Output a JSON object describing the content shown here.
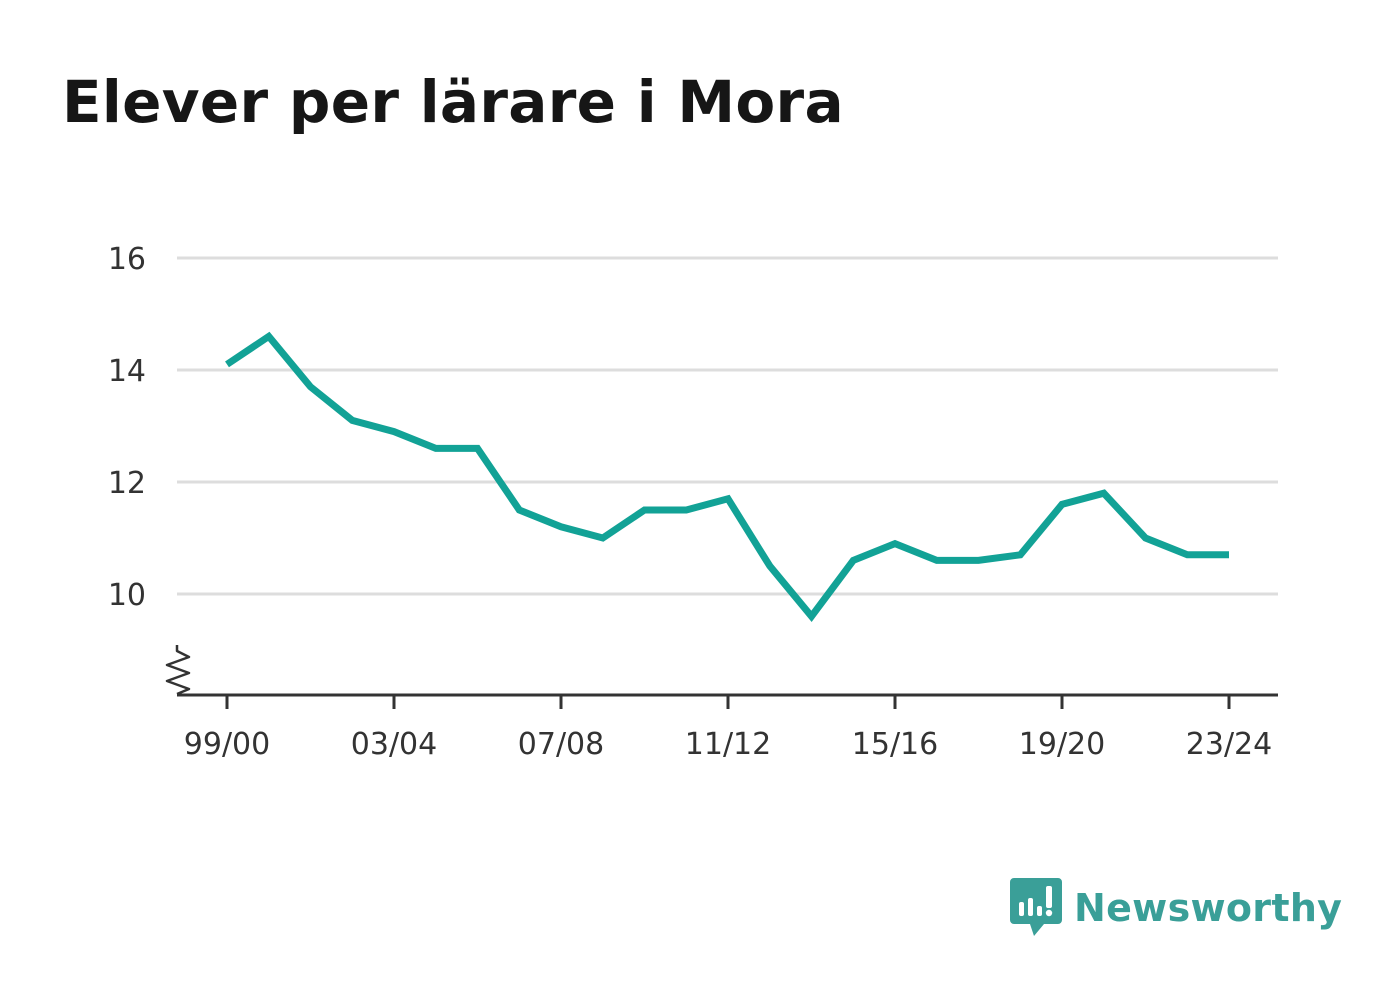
{
  "chart_data": {
    "type": "line",
    "title": "Elever per lärare i Mora",
    "x": [
      "99/00",
      "00/01",
      "01/02",
      "02/03",
      "03/04",
      "04/05",
      "05/06",
      "06/07",
      "07/08",
      "08/09",
      "09/10",
      "10/11",
      "11/12",
      "12/13",
      "13/14",
      "14/15",
      "15/16",
      "16/17",
      "17/18",
      "18/19",
      "19/20",
      "20/21",
      "21/22",
      "22/23",
      "23/24"
    ],
    "x_tick_labels": [
      "99/00",
      "03/04",
      "07/08",
      "11/12",
      "15/16",
      "19/20",
      "23/24"
    ],
    "series": [
      {
        "values": [
          14.1,
          14.6,
          13.7,
          13.1,
          12.9,
          12.6,
          12.6,
          11.5,
          11.2,
          11.0,
          11.5,
          11.5,
          11.7,
          10.5,
          9.6,
          10.6,
          10.9,
          10.6,
          10.6,
          10.7,
          11.6,
          11.8,
          11.0,
          10.7,
          10.7
        ],
        "color": "#12a296"
      }
    ],
    "y_ticks": [
      10,
      12,
      14,
      16
    ],
    "ylim": [
      8.2,
      16
    ],
    "y_axis_break": true,
    "grid": true,
    "grid_color": "#dddddd",
    "axis_color": "#333333"
  },
  "brand": {
    "name": "Newsworthy",
    "color": "#3a9f98",
    "icon": "bar-chart-speech-bubble-icon"
  }
}
